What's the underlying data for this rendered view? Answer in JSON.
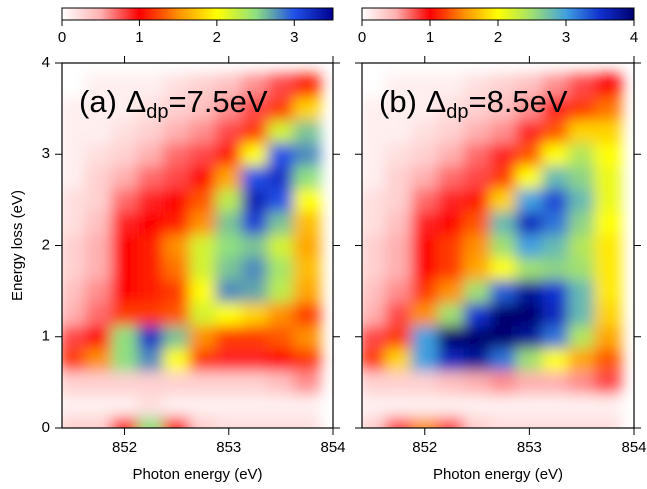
{
  "chart_data": [
    {
      "type": "heatmap",
      "title": [
        "(a) Δ",
        "dp",
        "=7.5eV"
      ],
      "xlabel": "Photon energy (eV)",
      "ylabel": "Energy loss (eV)",
      "xlim": [
        851.4,
        854
      ],
      "xticks": [
        852,
        853,
        854
      ],
      "ylim": [
        0,
        4
      ],
      "yticks": [
        0,
        1,
        2,
        3,
        4
      ],
      "clim": [
        0,
        3.5
      ],
      "cbticks": [
        0,
        1,
        2,
        3
      ],
      "colormap": [
        "#ffffff",
        "#ffb0b0",
        "#ff0000",
        "#ff9000",
        "#ffff00",
        "#90e080",
        "#2050e8",
        "#000090"
      ],
      "x": [
        851.5,
        851.75,
        852,
        852.25,
        852.5,
        852.75,
        853,
        853.25,
        853.5,
        853.75
      ],
      "y": [
        0,
        0.25,
        0.5,
        0.75,
        1,
        1.25,
        1.5,
        1.75,
        2,
        2.25,
        2.5,
        2.75,
        3,
        3.25,
        3.5,
        3.75
      ],
      "z": [
        [
          0.3,
          0.3,
          1,
          2.5,
          1,
          0.3,
          0.2,
          0.2,
          0.2,
          0.2
        ],
        [
          0.1,
          0.1,
          0.1,
          0.2,
          0.1,
          0.1,
          0.1,
          0.1,
          0.1,
          0.1
        ],
        [
          0.3,
          0.3,
          0.3,
          0.3,
          0.3,
          0.3,
          0.3,
          0.3,
          0.4,
          0.6
        ],
        [
          1.2,
          1.5,
          2.5,
          2.8,
          2.0,
          1.2,
          0.9,
          0.9,
          1.0,
          1.2
        ],
        [
          0.8,
          1.0,
          2.5,
          3.2,
          2.6,
          1.5,
          1.2,
          1.2,
          1.3,
          1.5
        ],
        [
          0.5,
          0.7,
          1.2,
          1.2,
          1.3,
          2.2,
          2.0,
          1.8,
          1.5,
          1.2
        ],
        [
          0.4,
          0.6,
          1.0,
          1.1,
          1.2,
          2.0,
          2.8,
          2.7,
          2.3,
          1.6
        ],
        [
          0.3,
          0.5,
          1.0,
          1.1,
          1.4,
          2.2,
          2.6,
          2.8,
          2.4,
          1.7
        ],
        [
          0.3,
          0.5,
          1.0,
          1.1,
          1.5,
          2.2,
          2.5,
          2.6,
          2.2,
          1.6
        ],
        [
          0.2,
          0.4,
          0.9,
          1.0,
          1.1,
          1.5,
          2.6,
          3.1,
          2.6,
          1.7
        ],
        [
          0.2,
          0.3,
          0.7,
          0.9,
          1.0,
          1.3,
          2.3,
          3.3,
          3.0,
          2.0
        ],
        [
          0.1,
          0.3,
          0.5,
          0.7,
          0.8,
          1.0,
          1.6,
          3.0,
          3.2,
          2.5
        ],
        [
          0.1,
          0.2,
          0.3,
          0.5,
          0.7,
          0.8,
          1.1,
          2.0,
          3.0,
          2.8
        ],
        [
          0.1,
          0.1,
          0.2,
          0.3,
          0.5,
          0.6,
          0.8,
          1.2,
          2.2,
          2.6
        ],
        [
          0.1,
          0.1,
          0.1,
          0.2,
          0.3,
          0.4,
          0.6,
          0.8,
          1.2,
          1.8
        ],
        [
          0.0,
          0.1,
          0.1,
          0.1,
          0.2,
          0.3,
          0.4,
          0.6,
          0.8,
          1.1
        ]
      ]
    },
    {
      "type": "heatmap",
      "title": [
        "(b) Δ",
        "dp",
        "=8.5eV"
      ],
      "xlabel": "Photon energy (eV)",
      "xlim": [
        851.4,
        854
      ],
      "xticks": [
        852,
        853,
        854
      ],
      "ylim": [
        0,
        4
      ],
      "yticks": [
        0,
        1,
        2,
        3,
        4
      ],
      "clim": [
        0,
        4
      ],
      "cbticks": [
        0,
        1,
        2,
        3,
        4
      ],
      "colormap": [
        "#ffffff",
        "#ffb0b0",
        "#ff0000",
        "#ff9000",
        "#ffff00",
        "#a0e070",
        "#40a0e0",
        "#1030d0",
        "#000070"
      ],
      "x": [
        851.5,
        851.75,
        852,
        852.25,
        852.5,
        852.75,
        853,
        853.25,
        853.5,
        853.75
      ],
      "y": [
        0,
        0.25,
        0.5,
        0.75,
        1,
        1.25,
        1.5,
        1.75,
        2,
        2.25,
        2.5,
        2.75,
        3,
        3.25,
        3.5,
        3.75
      ],
      "z": [
        [
          0.3,
          0.8,
          1.5,
          0.8,
          0.3,
          0.2,
          0.2,
          0.2,
          0.2,
          0.2
        ],
        [
          0.1,
          0.1,
          0.1,
          0.1,
          0.1,
          0.1,
          0.1,
          0.1,
          0.1,
          0.1
        ],
        [
          0.3,
          0.3,
          0.3,
          0.4,
          0.5,
          0.6,
          0.5,
          0.5,
          0.6,
          0.8
        ],
        [
          1.2,
          1.8,
          3.0,
          3.6,
          3.8,
          3.2,
          2.5,
          2.0,
          1.6,
          1.3
        ],
        [
          0.8,
          1.2,
          3.0,
          4.0,
          4.0,
          4.0,
          3.8,
          3.2,
          2.4,
          1.6
        ],
        [
          0.5,
          0.8,
          1.5,
          2.5,
          3.5,
          4.0,
          4.0,
          3.6,
          2.8,
          1.8
        ],
        [
          0.4,
          0.6,
          1.2,
          1.5,
          2.5,
          3.3,
          3.8,
          3.5,
          2.8,
          1.9
        ],
        [
          0.3,
          0.5,
          1.0,
          1.2,
          1.6,
          2.0,
          2.5,
          2.6,
          2.5,
          1.9
        ],
        [
          0.3,
          0.5,
          1.0,
          1.2,
          1.5,
          2.5,
          3.0,
          2.8,
          2.4,
          1.9
        ],
        [
          0.2,
          0.4,
          0.9,
          1.0,
          1.3,
          2.8,
          3.6,
          3.2,
          2.6,
          2.0
        ],
        [
          0.2,
          0.3,
          0.7,
          0.9,
          1.1,
          1.8,
          3.0,
          3.4,
          2.8,
          2.1
        ],
        [
          0.1,
          0.3,
          0.5,
          0.7,
          0.8,
          1.2,
          2.0,
          2.8,
          2.6,
          2.1
        ],
        [
          0.1,
          0.2,
          0.3,
          0.5,
          0.7,
          0.9,
          1.3,
          2.0,
          2.4,
          2.0
        ],
        [
          0.1,
          0.1,
          0.2,
          0.3,
          0.5,
          0.6,
          0.9,
          1.3,
          1.8,
          1.8
        ],
        [
          0.1,
          0.1,
          0.1,
          0.2,
          0.3,
          0.4,
          0.6,
          0.9,
          1.2,
          1.4
        ],
        [
          0.0,
          0.1,
          0.1,
          0.1,
          0.2,
          0.3,
          0.4,
          0.6,
          0.8,
          1.0
        ]
      ]
    }
  ]
}
